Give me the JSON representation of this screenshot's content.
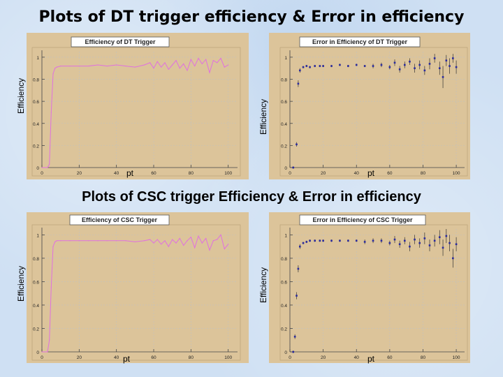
{
  "titles": {
    "dt": "Plots of DT trigger efficiency & Error in efficiency",
    "csc": "Plots of CSC trigger Efficiency & Error in efficiency"
  },
  "labels": {
    "efficiency": "Efficiency",
    "pt": "pt"
  },
  "colors": {
    "panel_bg": "#dcc49a",
    "frame_bg": "#ffffff",
    "line": "#e070e0",
    "points": "#2a2a9e",
    "grid": "#c0c0c0"
  },
  "chart_data": [
    {
      "id": "dt-eff",
      "type": "line",
      "title": "Efficiency of DT Trigger",
      "xlabel": "pt",
      "ylabel": "Efficiency",
      "xlim": [
        0,
        105
      ],
      "ylim": [
        0,
        1.05
      ],
      "xticks": [
        0,
        20,
        40,
        60,
        80,
        100
      ],
      "yticks": [
        0,
        0.2,
        0.4,
        0.6,
        0.8,
        1
      ],
      "x": [
        0,
        3,
        4,
        5,
        6,
        7,
        8,
        10,
        15,
        20,
        25,
        30,
        35,
        40,
        45,
        50,
        55,
        58,
        60,
        62,
        64,
        66,
        68,
        70,
        72,
        74,
        76,
        78,
        80,
        82,
        84,
        86,
        88,
        90,
        92,
        94,
        96,
        98,
        100
      ],
      "values": [
        0,
        0,
        0.03,
        0.5,
        0.85,
        0.9,
        0.91,
        0.92,
        0.92,
        0.92,
        0.92,
        0.93,
        0.92,
        0.93,
        0.92,
        0.91,
        0.93,
        0.95,
        0.9,
        0.96,
        0.91,
        0.95,
        0.89,
        0.93,
        0.97,
        0.9,
        0.94,
        0.88,
        0.98,
        0.92,
        0.99,
        0.94,
        0.98,
        0.86,
        0.97,
        0.95,
        0.99,
        0.91,
        0.93
      ]
    },
    {
      "id": "dt-err",
      "type": "scatter",
      "title": "Error in Efficiency of DT Trigger",
      "xlabel": "pt",
      "ylabel": "Efficiency",
      "xlim": [
        0,
        105
      ],
      "ylim": [
        0,
        1.05
      ],
      "xticks": [
        0,
        20,
        40,
        60,
        80,
        100
      ],
      "yticks": [
        0,
        0.2,
        0.4,
        0.6,
        0.8,
        1
      ],
      "x": [
        2,
        4,
        5,
        6,
        8,
        10,
        12,
        15,
        18,
        20,
        25,
        30,
        35,
        40,
        45,
        50,
        55,
        60,
        63,
        66,
        69,
        72,
        75,
        78,
        81,
        84,
        87,
        90,
        92,
        94,
        96,
        98,
        100
      ],
      "values": [
        0,
        0.21,
        0.76,
        0.88,
        0.91,
        0.92,
        0.91,
        0.92,
        0.92,
        0.92,
        0.92,
        0.93,
        0.92,
        0.93,
        0.92,
        0.92,
        0.93,
        0.91,
        0.95,
        0.89,
        0.93,
        0.96,
        0.9,
        0.93,
        0.88,
        0.94,
        0.99,
        0.9,
        0.82,
        0.97,
        0.92,
        0.99,
        0.91
      ],
      "errors": [
        0.01,
        0.02,
        0.03,
        0.02,
        0.01,
        0.01,
        0.01,
        0.01,
        0.01,
        0.01,
        0.01,
        0.01,
        0.01,
        0.01,
        0.01,
        0.02,
        0.02,
        0.02,
        0.03,
        0.03,
        0.03,
        0.03,
        0.04,
        0.04,
        0.04,
        0.05,
        0.04,
        0.06,
        0.1,
        0.05,
        0.07,
        0.04,
        0.06
      ]
    },
    {
      "id": "csc-eff",
      "type": "line",
      "title": "Efficiency of CSC Trigger",
      "xlabel": "pt",
      "ylabel": "Efficiency",
      "xlim": [
        0,
        105
      ],
      "ylim": [
        0,
        1.05
      ],
      "xticks": [
        0,
        20,
        40,
        60,
        80,
        100
      ],
      "yticks": [
        0,
        0.2,
        0.4,
        0.6,
        0.8,
        1
      ],
      "x": [
        0,
        3,
        4,
        5,
        6,
        7,
        8,
        10,
        15,
        20,
        25,
        30,
        35,
        40,
        45,
        50,
        55,
        58,
        60,
        62,
        64,
        66,
        68,
        70,
        72,
        74,
        76,
        78,
        80,
        82,
        84,
        86,
        88,
        90,
        92,
        94,
        96,
        98,
        100
      ],
      "values": [
        0,
        0,
        0.1,
        0.55,
        0.9,
        0.94,
        0.95,
        0.95,
        0.95,
        0.95,
        0.95,
        0.95,
        0.95,
        0.95,
        0.95,
        0.94,
        0.95,
        0.96,
        0.93,
        0.96,
        0.92,
        0.95,
        0.9,
        0.96,
        0.93,
        0.97,
        0.91,
        0.95,
        0.98,
        0.89,
        0.99,
        0.93,
        0.97,
        0.87,
        0.95,
        0.96,
        1.0,
        0.88,
        0.92
      ]
    },
    {
      "id": "csc-err",
      "type": "scatter",
      "title": "Error in Efficiency of CSC Trigger",
      "xlabel": "pt",
      "ylabel": "Efficiency",
      "xlim": [
        0,
        105
      ],
      "ylim": [
        0,
        1.05
      ],
      "xticks": [
        0,
        20,
        40,
        60,
        80,
        100
      ],
      "yticks": [
        0,
        0.2,
        0.4,
        0.6,
        0.8,
        1
      ],
      "x": [
        2,
        3,
        4,
        5,
        6,
        8,
        10,
        12,
        15,
        18,
        20,
        25,
        30,
        35,
        40,
        45,
        50,
        55,
        60,
        63,
        66,
        69,
        72,
        75,
        78,
        81,
        84,
        87,
        90,
        92,
        94,
        96,
        98,
        100
      ],
      "values": [
        0,
        0.13,
        0.48,
        0.71,
        0.9,
        0.93,
        0.94,
        0.95,
        0.95,
        0.95,
        0.95,
        0.95,
        0.95,
        0.95,
        0.95,
        0.94,
        0.95,
        0.95,
        0.93,
        0.96,
        0.92,
        0.95,
        0.9,
        0.96,
        0.93,
        0.97,
        0.91,
        0.95,
        0.98,
        0.89,
        0.99,
        0.93,
        0.8,
        0.92
      ],
      "errors": [
        0.01,
        0.02,
        0.03,
        0.03,
        0.02,
        0.01,
        0.01,
        0.01,
        0.01,
        0.01,
        0.01,
        0.01,
        0.01,
        0.01,
        0.01,
        0.02,
        0.02,
        0.02,
        0.02,
        0.03,
        0.03,
        0.03,
        0.04,
        0.04,
        0.04,
        0.05,
        0.05,
        0.05,
        0.06,
        0.07,
        0.06,
        0.07,
        0.08,
        0.06
      ]
    }
  ]
}
